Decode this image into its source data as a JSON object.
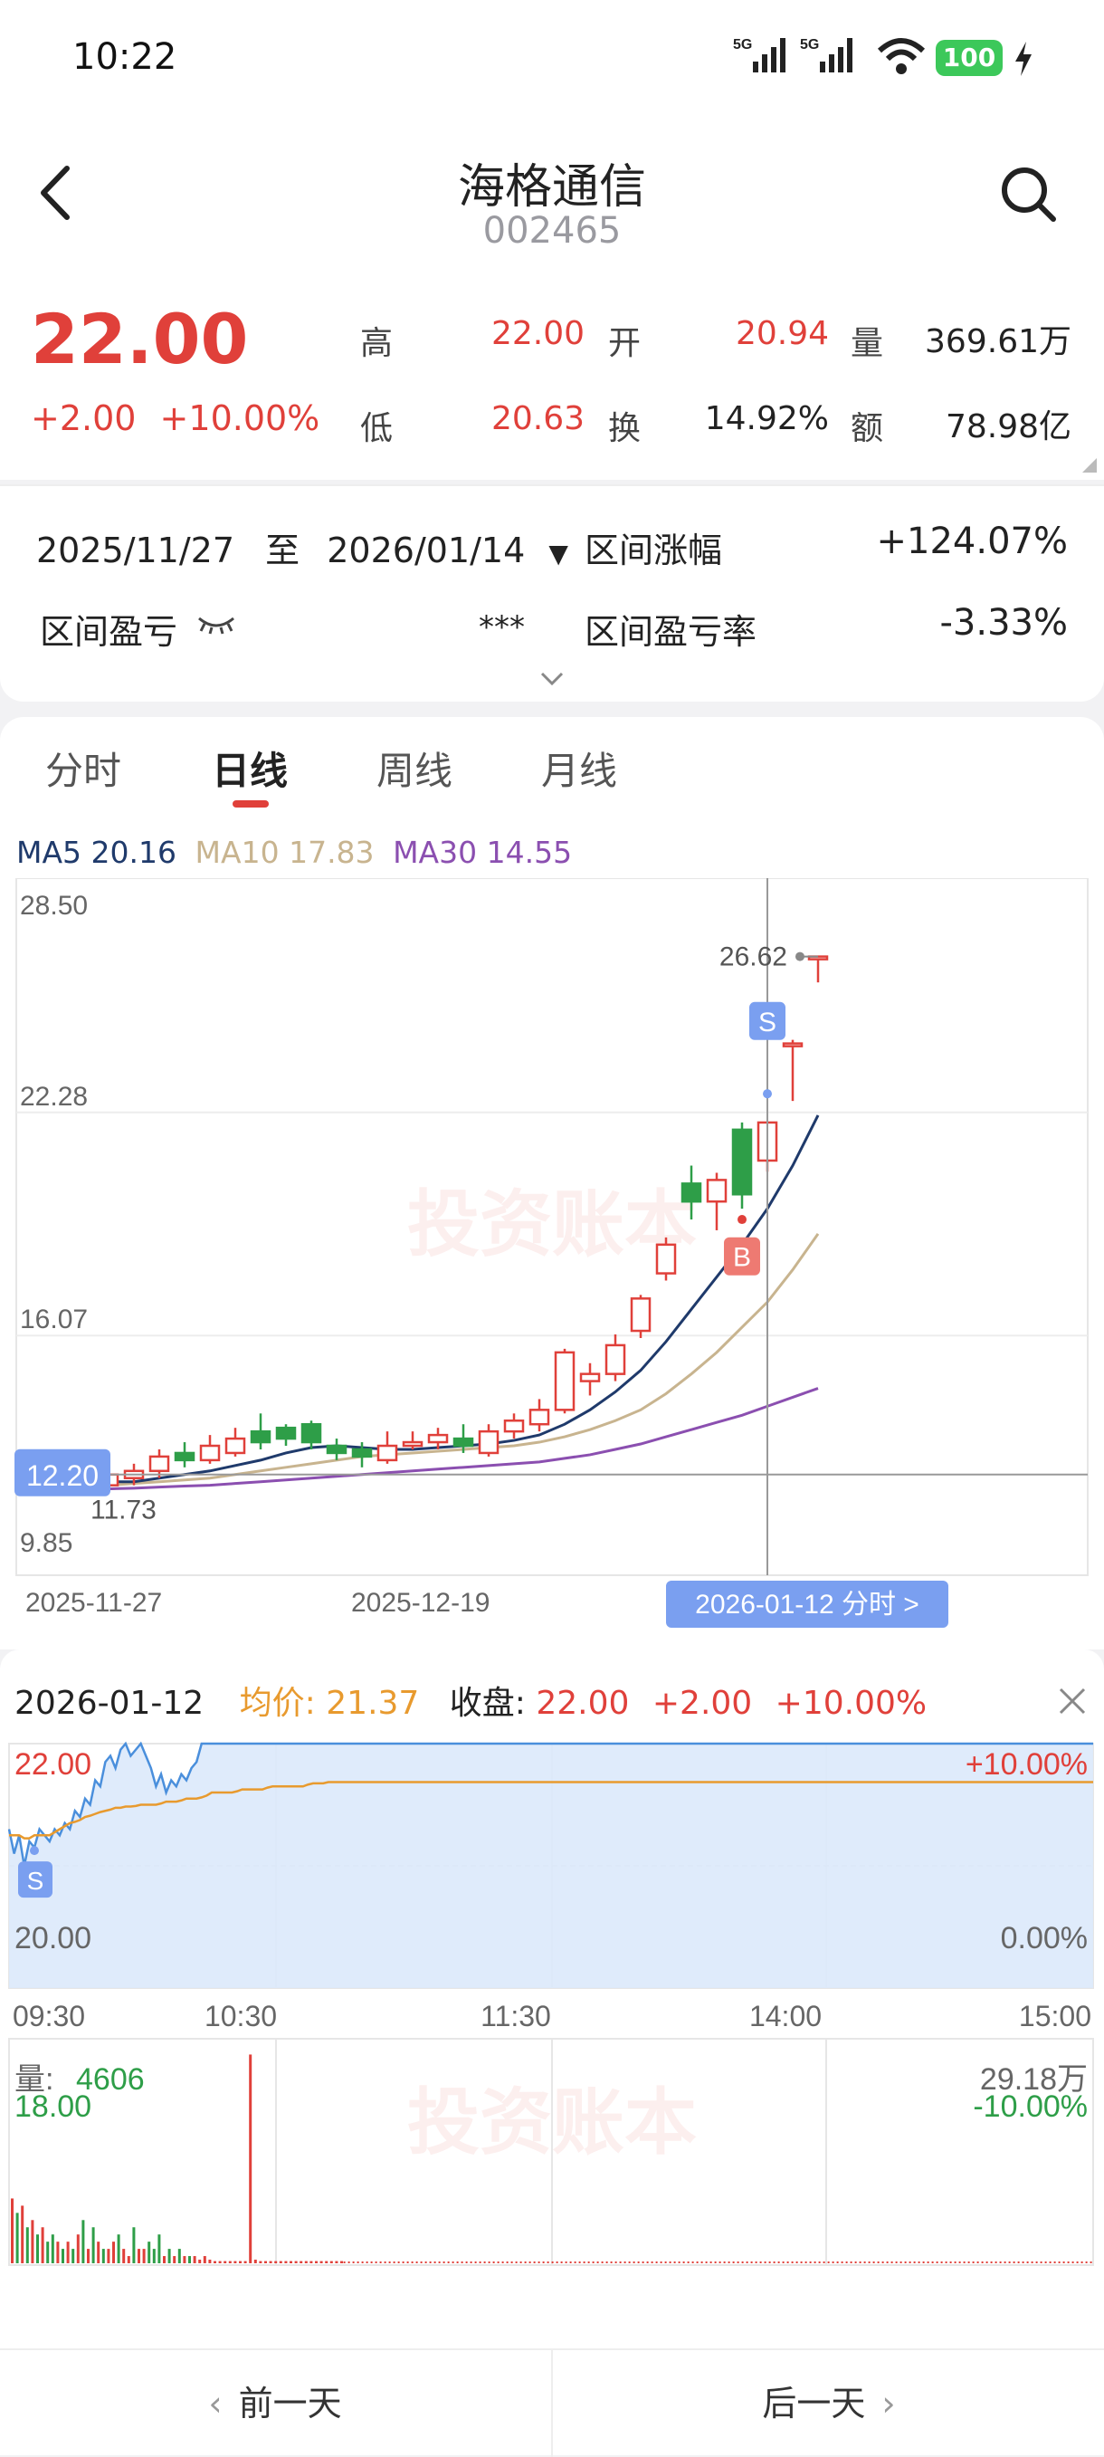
{
  "status_bar": {
    "time": "10:22",
    "net1": "5G",
    "net2": "5G",
    "battery": "100"
  },
  "header": {
    "title": "海格通信",
    "code": "002465"
  },
  "quote": {
    "price": "22.00",
    "change": "+2.00",
    "change_pct": "+10.00%",
    "high_label": "高",
    "high": "22.00",
    "open_label": "开",
    "open": "20.94",
    "vol_label": "量",
    "vol": "369.61万",
    "low_label": "低",
    "low": "20.63",
    "turnover_label": "换",
    "turnover": "14.92%",
    "amount_label": "额",
    "amount": "78.98亿"
  },
  "range": {
    "start": "2025/11/27",
    "to": "至",
    "end": "2026/01/14",
    "gain_label": "区间涨幅",
    "gain": "+124.07%",
    "pnl_label": "区间盈亏",
    "pnl": "***",
    "pnl_rate_label": "区间盈亏率",
    "pnl_rate": "-3.33%"
  },
  "tabs": [
    "分时",
    "日线",
    "周线",
    "月线"
  ],
  "active_tab": 1,
  "ma": {
    "ma5_label": "MA5",
    "ma5": "20.16",
    "ma10_label": "MA10",
    "ma10": "17.83",
    "ma30_label": "MA30",
    "ma30": "14.55"
  },
  "colors": {
    "up": "#e0403a",
    "down": "#2e9e48",
    "ma5": "#1f3a6b",
    "ma10": "#c8b48f",
    "ma30": "#8b4fb0",
    "accent": "#7a9ff0",
    "avg": "#e89a2e"
  },
  "kline": {
    "y_ticks": [
      "28.50",
      "22.28",
      "16.07",
      "9.85"
    ],
    "max_label": "26.62",
    "min_label": "11.73",
    "cur_label": "12.20",
    "x_labels": [
      "2025-11-27",
      "2025-12-19"
    ],
    "cursor_label": "2026-01-12 分时 >",
    "watermark": "投资账本",
    "sell_tag": "S",
    "buy_tag": "B",
    "candles": [
      {
        "o": 11.9,
        "c": 12.2,
        "h": 12.4,
        "l": 11.7
      },
      {
        "o": 12.1,
        "c": 12.3,
        "h": 12.5,
        "l": 11.9
      },
      {
        "o": 12.3,
        "c": 12.7,
        "h": 12.9,
        "l": 12.1
      },
      {
        "o": 12.8,
        "c": 12.6,
        "h": 13.1,
        "l": 12.4
      },
      {
        "o": 12.6,
        "c": 13.0,
        "h": 13.3,
        "l": 12.5
      },
      {
        "o": 12.8,
        "c": 13.2,
        "h": 13.5,
        "l": 12.7
      },
      {
        "o": 13.4,
        "c": 13.1,
        "h": 13.9,
        "l": 12.9
      },
      {
        "o": 13.5,
        "c": 13.2,
        "h": 13.6,
        "l": 13.0
      },
      {
        "o": 13.6,
        "c": 13.1,
        "h": 13.7,
        "l": 12.9
      },
      {
        "o": 13.0,
        "c": 12.8,
        "h": 13.2,
        "l": 12.6
      },
      {
        "o": 12.9,
        "c": 12.7,
        "h": 13.1,
        "l": 12.4
      },
      {
        "o": 12.6,
        "c": 13.0,
        "h": 13.4,
        "l": 12.5
      },
      {
        "o": 13.0,
        "c": 13.1,
        "h": 13.4,
        "l": 12.9
      },
      {
        "o": 13.1,
        "c": 13.3,
        "h": 13.5,
        "l": 12.9
      },
      {
        "o": 13.2,
        "c": 13.0,
        "h": 13.6,
        "l": 12.8
      },
      {
        "o": 12.8,
        "c": 13.4,
        "h": 13.6,
        "l": 12.7
      },
      {
        "o": 13.4,
        "c": 13.7,
        "h": 13.9,
        "l": 13.2
      },
      {
        "o": 13.6,
        "c": 14.0,
        "h": 14.3,
        "l": 13.4
      },
      {
        "o": 14.0,
        "c": 15.6,
        "h": 15.7,
        "l": 13.9
      },
      {
        "o": 14.8,
        "c": 15.0,
        "h": 15.3,
        "l": 14.4
      },
      {
        "o": 15.0,
        "c": 15.8,
        "h": 16.1,
        "l": 14.8
      },
      {
        "o": 16.2,
        "c": 17.1,
        "h": 17.2,
        "l": 16.0
      },
      {
        "o": 17.8,
        "c": 18.6,
        "h": 18.8,
        "l": 17.6
      },
      {
        "o": 20.3,
        "c": 19.8,
        "h": 20.8,
        "l": 19.3
      },
      {
        "o": 19.8,
        "c": 20.4,
        "h": 20.6,
        "l": 19.0
      },
      {
        "o": 21.8,
        "c": 20.0,
        "h": 22.0,
        "l": 19.6
      },
      {
        "o": 20.94,
        "c": 22.0,
        "h": 22.0,
        "l": 20.63
      },
      {
        "o": 24.2,
        "c": 24.2,
        "h": 24.3,
        "l": 22.6
      },
      {
        "o": 26.62,
        "c": 26.62,
        "h": 26.62,
        "l": 25.9
      }
    ],
    "ma5_values": [
      12.0,
      12.0,
      12.1,
      12.2,
      12.3,
      12.45,
      12.6,
      12.8,
      12.95,
      13.0,
      12.95,
      12.9,
      12.9,
      12.95,
      13.0,
      13.05,
      13.15,
      13.3,
      13.6,
      14.0,
      14.5,
      15.1,
      15.9,
      16.8,
      17.7,
      18.6,
      19.6,
      20.8,
      22.2
    ],
    "ma10_values": [
      11.9,
      11.95,
      12.0,
      12.05,
      12.1,
      12.2,
      12.3,
      12.4,
      12.5,
      12.6,
      12.7,
      12.75,
      12.8,
      12.85,
      12.9,
      12.95,
      13.0,
      13.1,
      13.25,
      13.45,
      13.7,
      14.0,
      14.45,
      15.0,
      15.6,
      16.3,
      17.0,
      17.9,
      18.9
    ],
    "ma30_values": [
      11.8,
      11.82,
      11.85,
      11.88,
      11.9,
      11.95,
      12.0,
      12.05,
      12.1,
      12.15,
      12.2,
      12.25,
      12.3,
      12.35,
      12.4,
      12.45,
      12.5,
      12.55,
      12.65,
      12.75,
      12.9,
      13.05,
      13.25,
      13.45,
      13.65,
      13.85,
      14.1,
      14.35,
      14.6
    ],
    "ymin": 9.85,
    "ymax": 28.5
  },
  "intraday": {
    "date": "2026-01-12",
    "avg_label": "均价:",
    "avg": "21.37",
    "close_label": "收盘:",
    "close": "22.00",
    "chg": "+2.00",
    "chg_pct": "+10.00%",
    "y_left": [
      "22.00",
      "20.00",
      "18.00"
    ],
    "y_right": [
      "+10.00%",
      "0.00%",
      "-10.00%"
    ],
    "x_labels": [
      "09:30",
      "10:30",
      "11:30",
      "14:00",
      "15:00"
    ],
    "vol_label": "量:",
    "vol_value": "4606",
    "vol_max": "29.18万",
    "sell_tag": "S",
    "price_series": [
      20.6,
      20.2,
      20.5,
      20.0,
      20.4,
      20.3,
      20.6,
      20.5,
      20.4,
      20.6,
      20.5,
      20.7,
      20.6,
      20.9,
      20.8,
      21.1,
      21.0,
      21.4,
      21.3,
      21.7,
      21.8,
      21.6,
      21.9,
      22.0,
      21.8,
      21.9,
      22.0,
      21.8,
      21.6,
      21.3,
      21.5,
      21.2,
      21.4,
      21.3,
      21.5,
      21.4,
      21.6,
      21.7,
      22.0,
      22.0,
      22.0,
      22.0,
      22.0,
      22.0,
      22.0,
      22.0,
      22.0,
      22.0,
      22.0,
      22.0,
      22.0,
      22.0,
      22.0,
      22.0,
      22.0,
      22.0,
      22.0,
      22.0,
      22.0,
      22.0,
      22.0,
      22.0,
      22.0,
      22.0,
      22.0,
      22.0
    ],
    "avg_series": [
      20.5,
      20.5,
      20.5,
      20.45,
      20.45,
      20.5,
      20.5,
      20.5,
      20.5,
      20.55,
      20.6,
      20.65,
      20.7,
      20.72,
      20.75,
      20.8,
      20.82,
      20.85,
      20.88,
      20.9,
      20.92,
      20.95,
      20.95,
      20.97,
      20.97,
      20.98,
      21.0,
      21.0,
      21.0,
      21.0,
      21.02,
      21.05,
      21.05,
      21.05,
      21.07,
      21.1,
      21.1,
      21.1,
      21.12,
      21.15,
      21.2,
      21.2,
      21.2,
      21.2,
      21.2,
      21.22,
      21.25,
      21.25,
      21.25,
      21.25,
      21.25,
      21.28,
      21.3,
      21.3,
      21.3,
      21.3,
      21.3,
      21.3,
      21.3,
      21.33,
      21.35,
      21.35,
      21.35,
      21.37,
      21.37,
      21.37
    ],
    "volumes": [
      9,
      7,
      8,
      5,
      6,
      4,
      5,
      3,
      4,
      3,
      2,
      3,
      2,
      4,
      6,
      2,
      5,
      3,
      2,
      2,
      3,
      4,
      2,
      1,
      5,
      2,
      2,
      3,
      2,
      4,
      1,
      2,
      1,
      2,
      1,
      1,
      1,
      0.5,
      1,
      0.5,
      0.3,
      0.3,
      0.3,
      0.3,
      0.3,
      0.3,
      0.3,
      29,
      0.5,
      0.3,
      0.3,
      0.3,
      0.3,
      0.3,
      0.3,
      0.3,
      0.3,
      0.3,
      0.3,
      0.3,
      0.3,
      0.3,
      0.3,
      0.3,
      0.3,
      0.3
    ],
    "prev_close": 20.0,
    "ymin": 18.0,
    "ymax": 22.0
  },
  "footer": {
    "prev": "前一天",
    "next": "后一天"
  }
}
